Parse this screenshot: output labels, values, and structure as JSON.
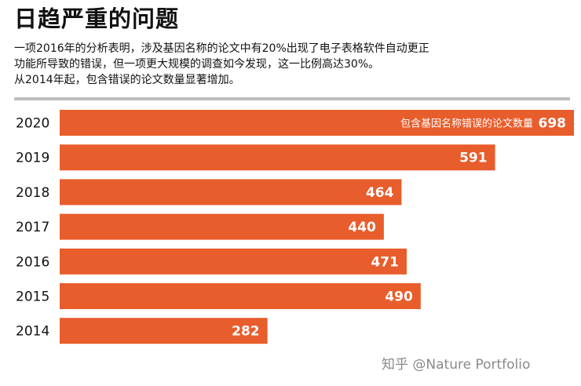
{
  "title": "日趋严重的问题",
  "description": [
    "一项2016年的分析表明，涉及基因名称的论文中有20%出现了电子表格软件自动更正",
    "功能所导致的错误，但一项更大规模的调查如今发现，这一比例高达30%。",
    "从2014年起，包含错误的论文数量显著增加。"
  ],
  "watermark": "知乎 @Nature Portfolio",
  "colors": {
    "bar": "#e85d2c",
    "rule": "#bdbdbd"
  },
  "chart_data": {
    "type": "bar",
    "orientation": "horizontal",
    "categories": [
      "2020",
      "2019",
      "2018",
      "2017",
      "2016",
      "2015",
      "2014"
    ],
    "values": [
      698,
      591,
      464,
      440,
      471,
      490,
      282
    ],
    "series_label": "包含基因名称错误的论文数量",
    "xlim": [
      0,
      698
    ],
    "grid": false
  }
}
